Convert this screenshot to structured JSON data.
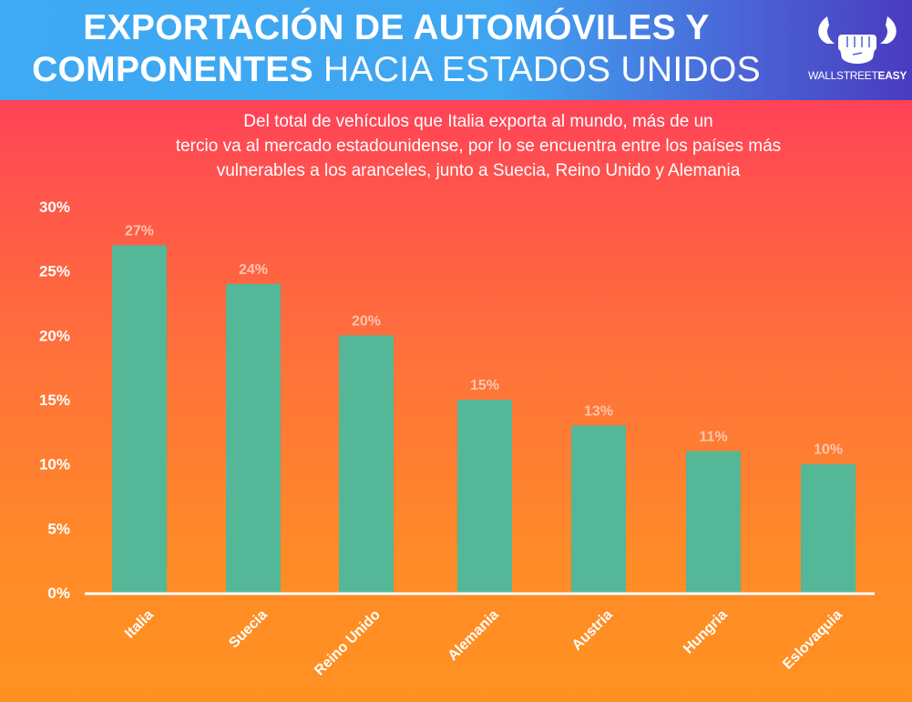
{
  "header": {
    "title_line1": "EXPORTACIÓN DE AUTOMÓVILES Y",
    "title_line2_bold": "COMPONENTES",
    "title_line2_light": "HACIA ESTADOS UNIDOS",
    "logo": {
      "icon": "bull-horns-fist-icon",
      "text_light": "WALLSTREET",
      "text_bold": "EASY"
    }
  },
  "subtitle": {
    "line1": "Del total de vehículos que Italia exporta al mundo, más de un",
    "line2": "tercio va al mercado estadounidense, por lo se encuentra entre los países más",
    "line3": "vulnerables a los aranceles, junto a Suecia, Reino Unido y Alemania"
  },
  "colors": {
    "bar": "#54b797",
    "value_label": "#fcc6b0",
    "header_start": "#3fa9f3",
    "header_end": "#4a3bbf",
    "background_top": "#ff4258",
    "background_bottom": "#ff9120"
  },
  "chart_data": {
    "type": "bar",
    "title": "EXPORTACIÓN DE AUTOMÓVILES Y COMPONENTES HACIA ESTADOS UNIDOS",
    "subtitle": "Del total de vehículos que Italia exporta al mundo, más de un tercio va al mercado estadounidense, por lo se encuentra entre los países más vulnerables a los aranceles, junto a Suecia, Reino Unido y Alemania",
    "xlabel": "",
    "ylabel": "",
    "categories": [
      "Italia",
      "Suecia",
      "Reino Unido",
      "Alemania",
      "Austria",
      "Hungria",
      "Eslovaquia"
    ],
    "values": [
      27,
      24,
      20,
      15,
      13,
      11,
      10
    ],
    "value_labels": [
      "27%",
      "24%",
      "20%",
      "15%",
      "13%",
      "11%",
      "10%"
    ],
    "ylim": [
      0,
      30
    ],
    "yticks": [
      0,
      5,
      10,
      15,
      20,
      25,
      30
    ],
    "ytick_labels": [
      "0%",
      "5%",
      "10%",
      "15%",
      "20%",
      "25%",
      "30%"
    ],
    "grid": false,
    "legend": "none",
    "x_label_rotation": "diagonal"
  }
}
